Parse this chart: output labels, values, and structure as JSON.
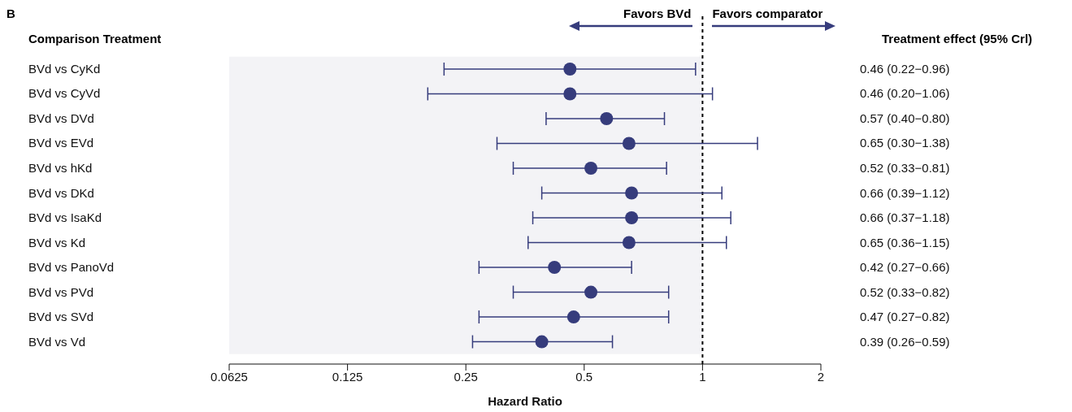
{
  "chart_data": {
    "type": "scatter",
    "orientation": "horizontal",
    "title": "B",
    "ylabel": "Comparison Treatment",
    "y2label": "Treatment effect (95% Crl)",
    "xlabel": "Hazard Ratio",
    "categories": [
      "BVd vs CyKd",
      "BVd vs CyVd",
      "BVd vs DVd",
      "BVd vs EVd",
      "BVd vs hKd",
      "BVd vs DKd",
      "BVd vs IsaKd",
      "BVd vs Kd",
      "BVd vs PanoVd",
      "BVd vs PVd",
      "BVd vs SVd",
      "BVd vs Vd"
    ],
    "values": [
      0.46,
      0.46,
      0.57,
      0.65,
      0.52,
      0.66,
      0.66,
      0.65,
      0.42,
      0.52,
      0.47,
      0.39
    ],
    "errors": [
      [
        0.22,
        0.96
      ],
      [
        0.2,
        1.06
      ],
      [
        0.4,
        0.8
      ],
      [
        0.3,
        1.38
      ],
      [
        0.33,
        0.81
      ],
      [
        0.39,
        1.12
      ],
      [
        0.37,
        1.18
      ],
      [
        0.36,
        1.15
      ],
      [
        0.27,
        0.66
      ],
      [
        0.33,
        0.82
      ],
      [
        0.27,
        0.82
      ],
      [
        0.26,
        0.59
      ]
    ],
    "value_labels": [
      "0.46 (0.22−0.96)",
      "0.46 (0.20−1.06)",
      "0.57 (0.40−0.80)",
      "0.65 (0.30−1.38)",
      "0.52 (0.33−0.81)",
      "0.66 (0.39−1.12)",
      "0.66 (0.37−1.18)",
      "0.65 (0.36−1.15)",
      "0.42 (0.27−0.66)",
      "0.52 (0.33−0.82)",
      "0.47 (0.27−0.82)",
      "0.39 (0.26−0.59)"
    ],
    "color": "#363c7c",
    "marker": "circle",
    "log": "x",
    "xlim": [
      0.0625,
      2
    ],
    "xticks": [
      0.0625,
      0.125,
      0.25,
      0.5,
      1,
      2
    ],
    "ref_lines": [
      {
        "axis": "x",
        "value": 1,
        "color": "#000000",
        "line_style": "dashed"
      }
    ],
    "bands": [
      {
        "axis": "x",
        "from": 0.0625,
        "to": 1,
        "color": "#f3f3f6"
      }
    ],
    "annotations": [
      "Favors BVd",
      "Favors comparator"
    ]
  }
}
